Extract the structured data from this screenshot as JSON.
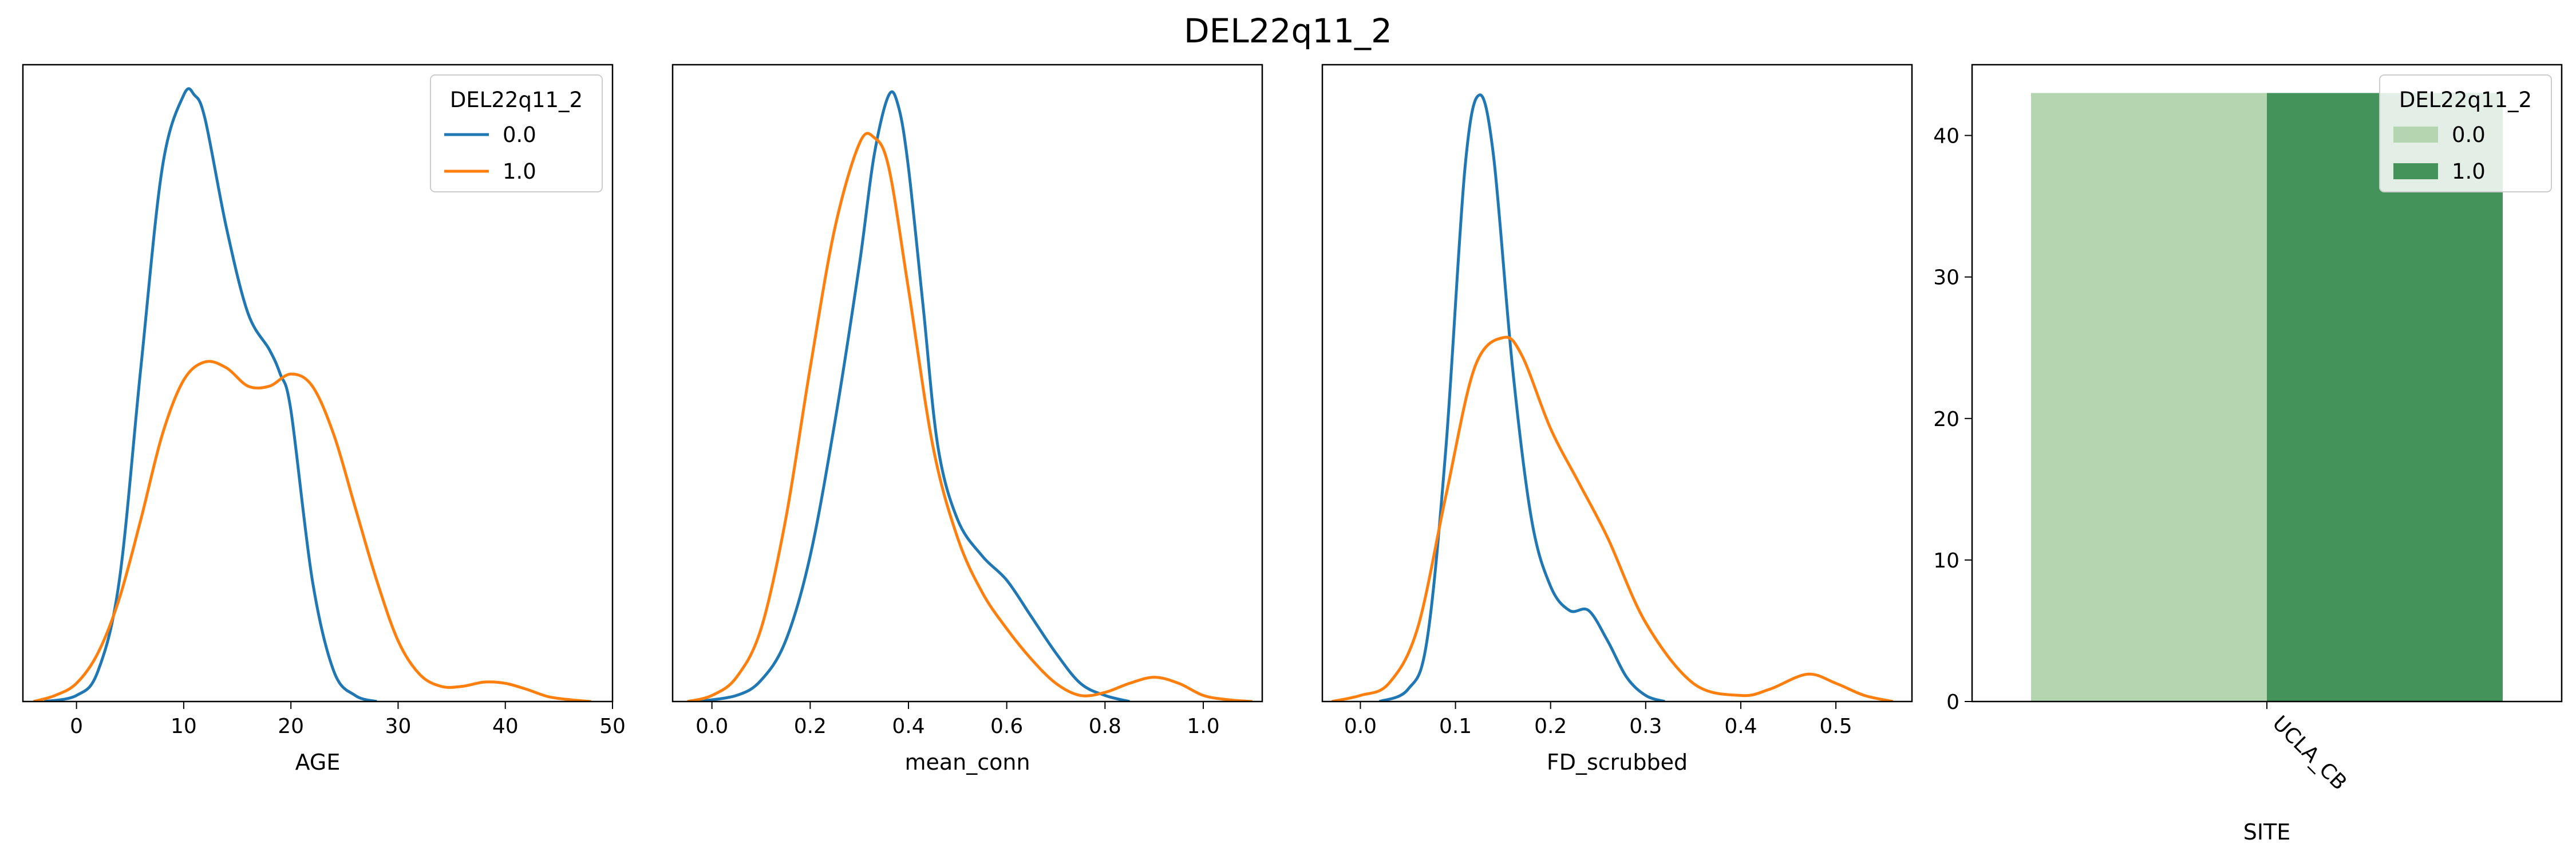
{
  "figure": {
    "title": "DEL22q11_2"
  },
  "colors": {
    "series_0": "#1f77b4",
    "series_1": "#ff7f0e",
    "bar_0": "#b3d6b0",
    "bar_1": "#43935a"
  },
  "chart_data": [
    {
      "type": "line",
      "kind": "kde",
      "xlabel": "AGE",
      "ylabel": "",
      "xlim": [
        -5,
        50
      ],
      "ylim": [
        0,
        1.05
      ],
      "xticks": [
        0,
        10,
        20,
        30,
        40,
        50
      ],
      "xtick_labels": [
        "0",
        "10",
        "20",
        "30",
        "40",
        "50"
      ],
      "legend": {
        "title": "DEL22q11_2",
        "position": "top-right"
      },
      "series": [
        {
          "name": "0.0",
          "color": "#1f77b4",
          "x": [
            -3,
            0,
            2,
            4,
            6,
            8,
            10,
            11,
            12,
            14,
            16,
            18,
            19,
            20,
            22,
            24,
            26,
            28
          ],
          "y": [
            0,
            0.01,
            0.05,
            0.2,
            0.55,
            0.88,
            1.0,
            1.0,
            0.96,
            0.78,
            0.64,
            0.58,
            0.54,
            0.48,
            0.2,
            0.05,
            0.01,
            0
          ]
        },
        {
          "name": "1.0",
          "color": "#ff7f0e",
          "x": [
            -4,
            -2,
            0,
            2,
            4,
            6,
            8,
            10,
            12,
            14,
            16,
            18,
            20,
            22,
            24,
            26,
            28,
            30,
            32,
            34,
            36,
            38,
            40,
            42,
            44,
            46,
            48
          ],
          "y": [
            0,
            0.01,
            0.03,
            0.08,
            0.17,
            0.3,
            0.44,
            0.53,
            0.56,
            0.55,
            0.52,
            0.52,
            0.54,
            0.52,
            0.44,
            0.32,
            0.2,
            0.1,
            0.045,
            0.025,
            0.025,
            0.032,
            0.03,
            0.02,
            0.008,
            0.003,
            0
          ]
        }
      ]
    },
    {
      "type": "line",
      "kind": "kde",
      "xlabel": "mean_conn",
      "ylabel": "",
      "xlim": [
        -0.08,
        1.12
      ],
      "ylim": [
        0,
        1.05
      ],
      "xticks": [
        0.0,
        0.2,
        0.4,
        0.6,
        0.8,
        1.0
      ],
      "xtick_labels": [
        "0.0",
        "0.2",
        "0.4",
        "0.6",
        "0.8",
        "1.0"
      ],
      "series": [
        {
          "name": "0.0",
          "color": "#1f77b4",
          "x": [
            -0.03,
            0.05,
            0.1,
            0.15,
            0.2,
            0.25,
            0.3,
            0.33,
            0.36,
            0.38,
            0.4,
            0.43,
            0.46,
            0.5,
            0.55,
            0.6,
            0.65,
            0.7,
            0.75,
            0.8,
            0.85
          ],
          "y": [
            0,
            0.01,
            0.035,
            0.1,
            0.24,
            0.46,
            0.72,
            0.9,
            1.0,
            0.98,
            0.88,
            0.65,
            0.42,
            0.3,
            0.24,
            0.2,
            0.14,
            0.08,
            0.03,
            0.01,
            0
          ]
        },
        {
          "name": "1.0",
          "color": "#ff7f0e",
          "x": [
            -0.05,
            0.0,
            0.05,
            0.1,
            0.15,
            0.2,
            0.25,
            0.3,
            0.33,
            0.36,
            0.4,
            0.45,
            0.5,
            0.55,
            0.6,
            0.65,
            0.7,
            0.75,
            0.8,
            0.85,
            0.9,
            0.95,
            1.0,
            1.05,
            1.1
          ],
          "y": [
            0,
            0.01,
            0.04,
            0.12,
            0.3,
            0.55,
            0.78,
            0.92,
            0.93,
            0.88,
            0.68,
            0.42,
            0.27,
            0.18,
            0.12,
            0.07,
            0.03,
            0.01,
            0.015,
            0.03,
            0.04,
            0.03,
            0.01,
            0.003,
            0
          ]
        }
      ]
    },
    {
      "type": "line",
      "kind": "kde",
      "xlabel": "FD_scrubbed",
      "ylabel": "",
      "xlim": [
        -0.04,
        0.58
      ],
      "ylim": [
        0,
        1.05
      ],
      "xticks": [
        0.0,
        0.1,
        0.2,
        0.3,
        0.4,
        0.5
      ],
      "xtick_labels": [
        "0.0",
        "0.1",
        "0.2",
        "0.3",
        "0.4",
        "0.5"
      ],
      "series": [
        {
          "name": "0.0",
          "color": "#1f77b4",
          "x": [
            0.02,
            0.05,
            0.07,
            0.09,
            0.11,
            0.125,
            0.14,
            0.16,
            0.18,
            0.2,
            0.22,
            0.24,
            0.26,
            0.28,
            0.3,
            0.32
          ],
          "y": [
            0,
            0.02,
            0.1,
            0.42,
            0.88,
            1.0,
            0.9,
            0.55,
            0.3,
            0.19,
            0.15,
            0.15,
            0.1,
            0.04,
            0.01,
            0
          ]
        },
        {
          "name": "1.0",
          "color": "#ff7f0e",
          "x": [
            -0.03,
            0.0,
            0.03,
            0.06,
            0.09,
            0.12,
            0.15,
            0.17,
            0.2,
            0.23,
            0.26,
            0.3,
            0.35,
            0.4,
            0.43,
            0.47,
            0.5,
            0.53,
            0.56
          ],
          "y": [
            0,
            0.01,
            0.03,
            0.12,
            0.34,
            0.55,
            0.6,
            0.57,
            0.45,
            0.36,
            0.27,
            0.13,
            0.03,
            0.01,
            0.02,
            0.045,
            0.03,
            0.01,
            0
          ]
        }
      ]
    },
    {
      "type": "bar",
      "xlabel": "SITE",
      "ylabel": "",
      "categories": [
        "UCLA_CB"
      ],
      "ylim": [
        0,
        45
      ],
      "yticks": [
        0,
        10,
        20,
        30,
        40
      ],
      "ytick_labels": [
        "0",
        "10",
        "20",
        "30",
        "40"
      ],
      "legend": {
        "title": "DEL22q11_2",
        "position": "top-right"
      },
      "series": [
        {
          "name": "0.0",
          "color": "#b3d6b0",
          "values": [
            43
          ]
        },
        {
          "name": "1.0",
          "color": "#43935a",
          "values": [
            43
          ]
        }
      ]
    }
  ]
}
